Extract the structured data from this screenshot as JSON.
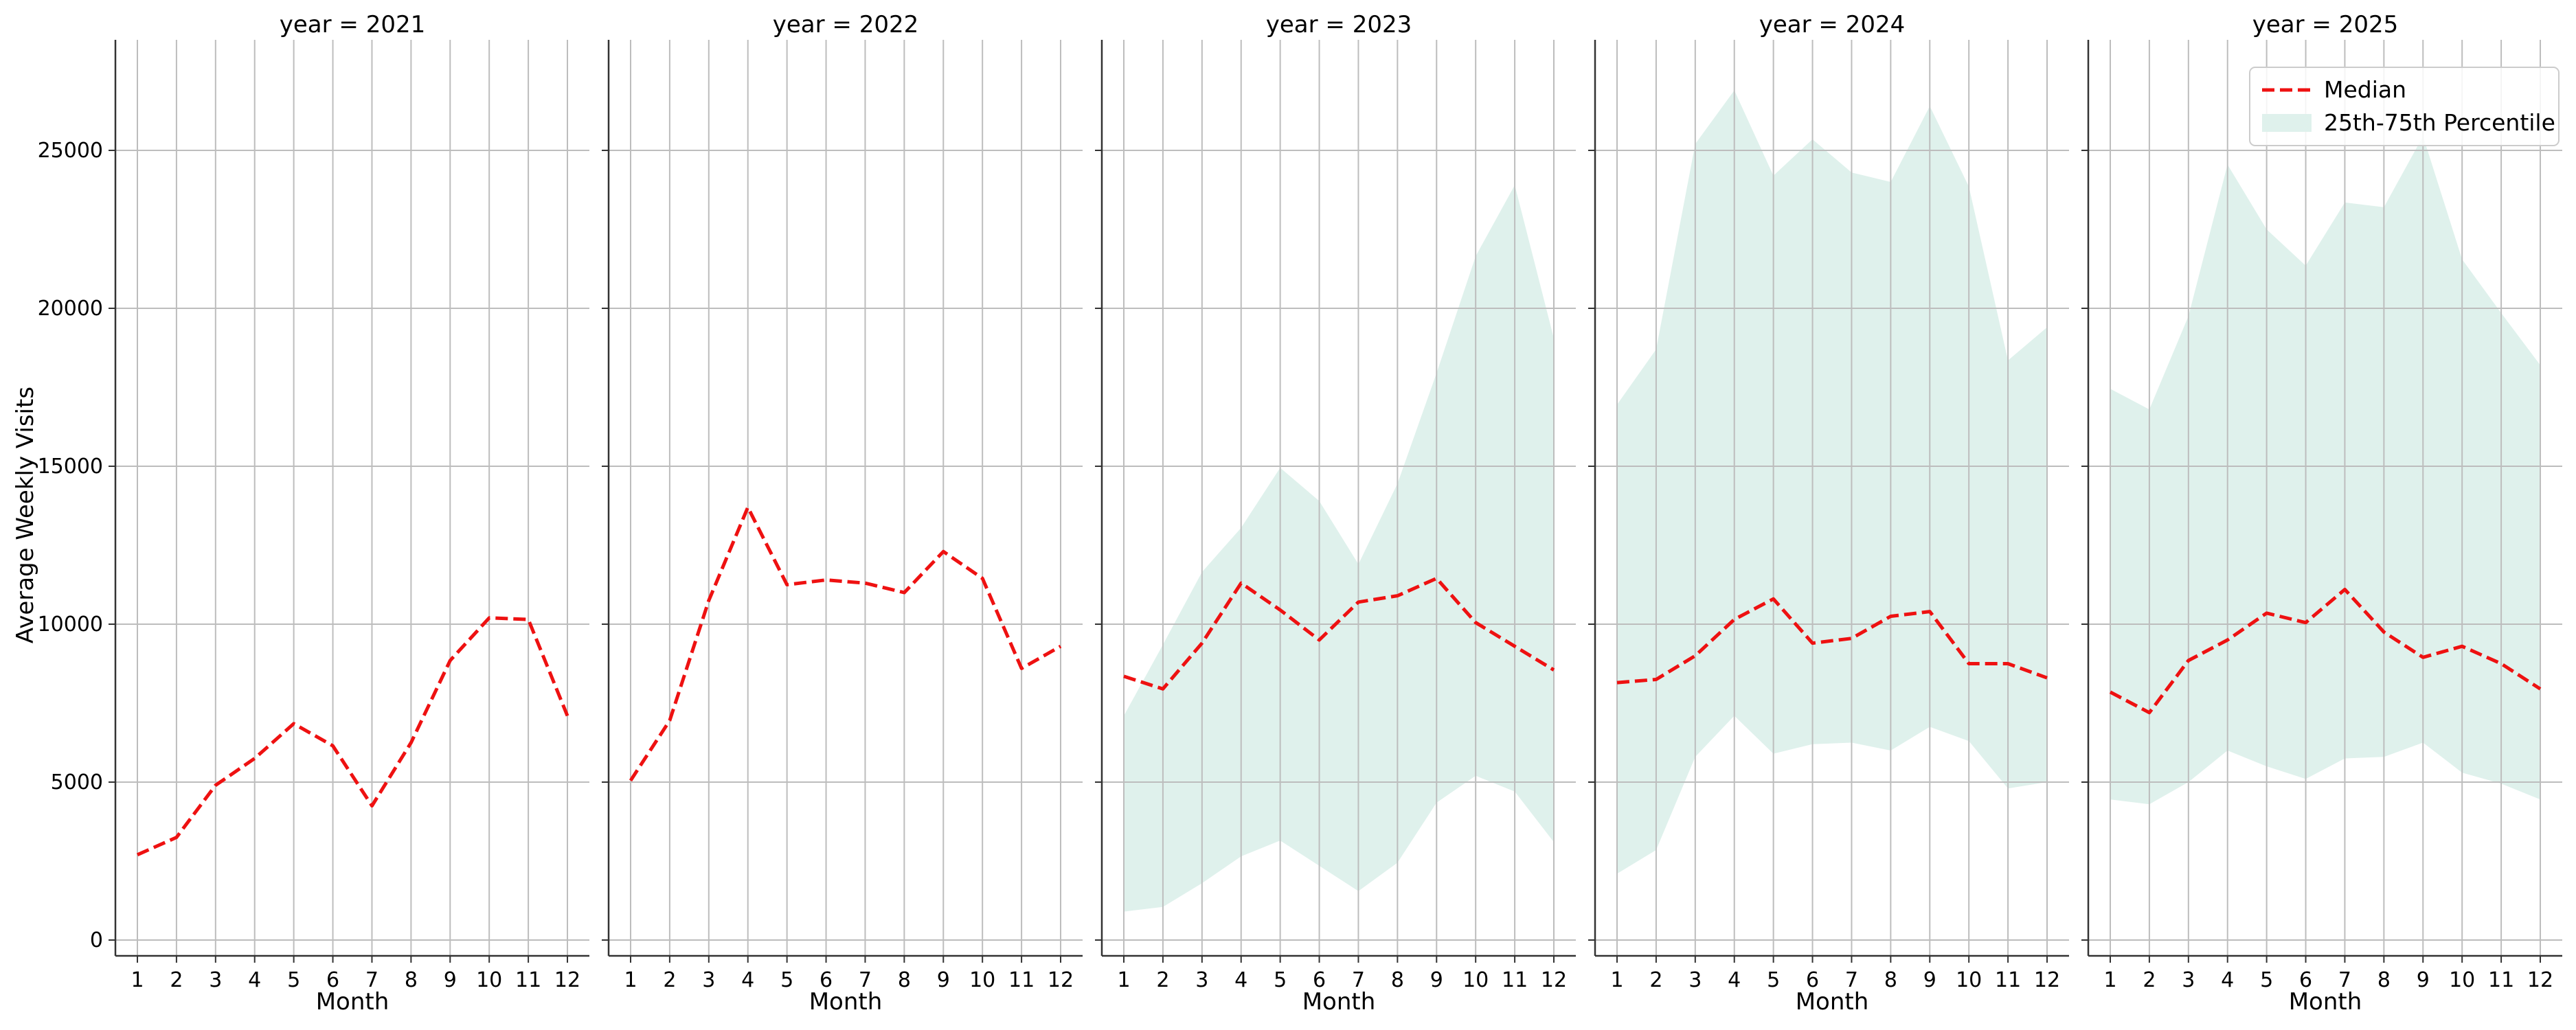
{
  "chart_data": {
    "type": "line",
    "ylabel": "Average Weekly Visits",
    "xlabel": "Month",
    "x": [
      1,
      2,
      3,
      4,
      5,
      6,
      7,
      8,
      9,
      10,
      11,
      12
    ],
    "ylim": [
      -500,
      28500
    ],
    "yticks": [
      0,
      5000,
      10000,
      15000,
      20000,
      25000
    ],
    "grid": true,
    "legend": {
      "position": "top-right",
      "entries": [
        "Median",
        "25th-75th Percentile"
      ]
    },
    "colors": {
      "median": "#ee1111",
      "band": "#dff1ec",
      "grid": "#bdbdbd"
    },
    "panels": [
      {
        "title": "year = 2021",
        "median": [
          2700,
          3250,
          4900,
          5750,
          6850,
          6150,
          4250,
          6250,
          8850,
          10200,
          10150,
          7100
        ],
        "p25": null,
        "p75": null
      },
      {
        "title": "year = 2022",
        "median": [
          5050,
          6950,
          10750,
          13700,
          11250,
          11400,
          11300,
          11000,
          12300,
          11450,
          8600,
          9300
        ],
        "p25": null,
        "p75": null
      },
      {
        "title": "year = 2023",
        "median": [
          8350,
          7950,
          9400,
          11300,
          10450,
          9500,
          10700,
          10900,
          11450,
          10050,
          9300,
          8550
        ],
        "p25": [
          900,
          1050,
          1800,
          2650,
          3150,
          2350,
          1550,
          2450,
          4350,
          5200,
          4700,
          3100
        ],
        "p75": [
          7100,
          9350,
          11650,
          13050,
          14950,
          13900,
          11900,
          14450,
          17950,
          21650,
          23900,
          19050
        ]
      },
      {
        "title": "year = 2024",
        "median": [
          8150,
          8250,
          9000,
          10150,
          10800,
          9400,
          9550,
          10250,
          10400,
          8750,
          8750,
          8300
        ],
        "p25": [
          2100,
          2850,
          5800,
          7100,
          5900,
          6200,
          6250,
          6000,
          6750,
          6300,
          4800,
          5000
        ],
        "p75": [
          16950,
          18700,
          25200,
          26900,
          24200,
          25350,
          24300,
          24000,
          26400,
          23850,
          18350,
          19400
        ]
      },
      {
        "title": "year = 2025",
        "median": [
          7850,
          7200,
          8850,
          9500,
          10350,
          10050,
          11100,
          9750,
          8950,
          9300,
          8750,
          7950
        ],
        "p25": [
          4450,
          4300,
          5000,
          6000,
          5500,
          5100,
          5750,
          5800,
          6250,
          5300,
          4950,
          4450
        ],
        "p75": [
          17450,
          16800,
          19750,
          24550,
          22500,
          21350,
          23350,
          23200,
          25450,
          21550,
          19850,
          18200
        ]
      }
    ]
  }
}
